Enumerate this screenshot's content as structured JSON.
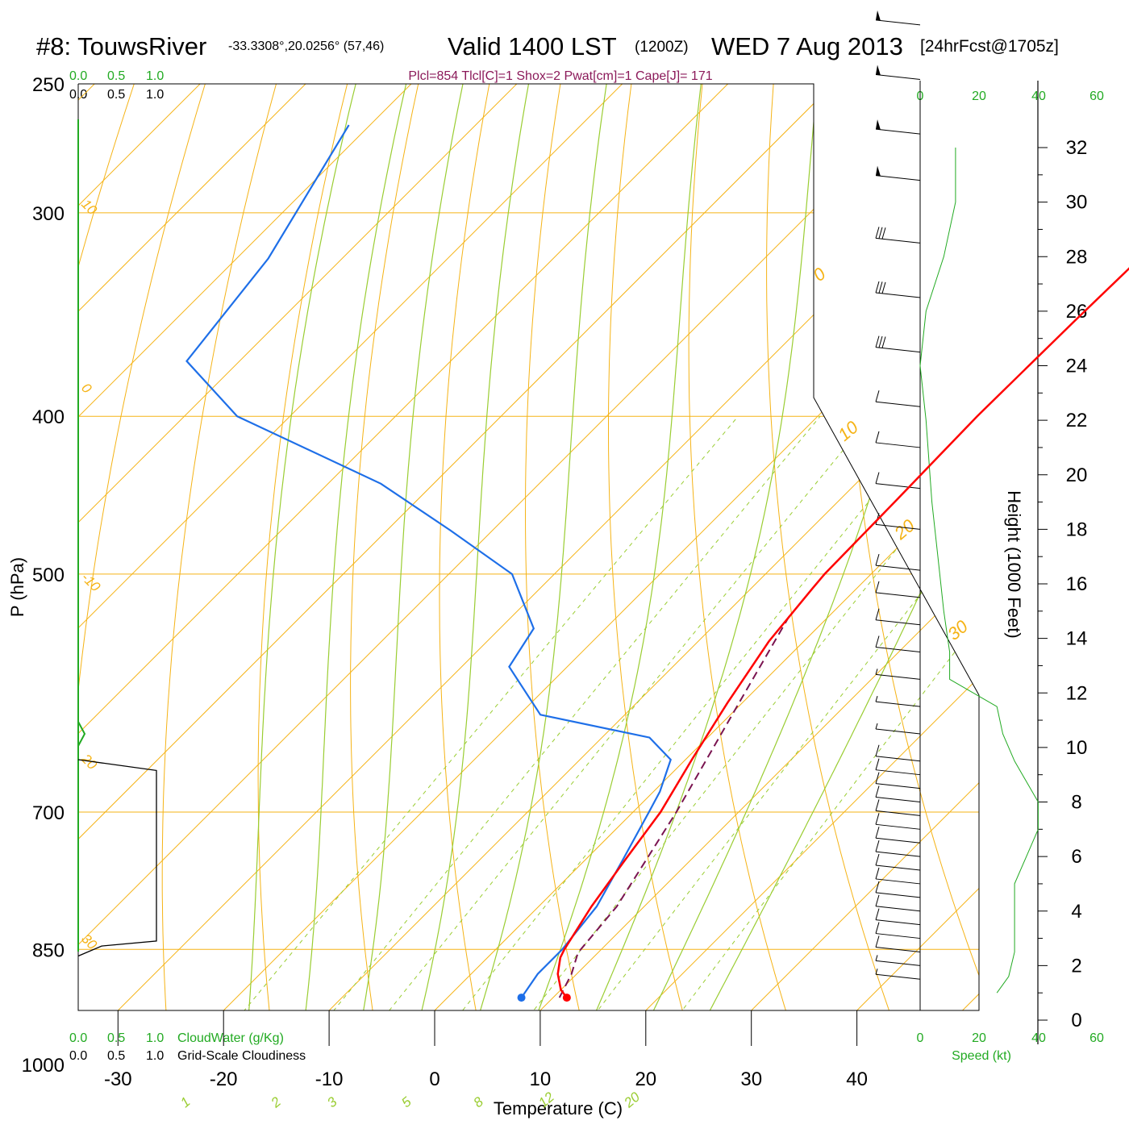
{
  "header": {
    "station": "#8: TouwsRiver",
    "coords": "-33.3308°,20.0256° (57,46)",
    "valid": "Valid 1400 LST",
    "zulu": "(1200Z)",
    "date": "WED 7 Aug 2013",
    "fcst": "[24hrFcst@1705z]",
    "indices": "Plcl=854 Tlcl[C]=1 Shox=2 Pwat[cm]=1 Cape[J]= 171"
  },
  "colors": {
    "isotherm": "#f5b316",
    "dry_adiabat": "#f5b316",
    "moist_adiabat": "#9acd32",
    "mixing_ratio": "#9acd32",
    "temperature": "#ff0000",
    "dewpoint": "#1e6fe8",
    "parcel": "#7a1450",
    "cloud_scale": "#22aa22",
    "barbs": "#000000"
  },
  "left_scales": {
    "cloudwater_ticks": [
      "0.0",
      "0.5",
      "1.0"
    ],
    "cloudiness_ticks": [
      "0.0",
      "0.5",
      "1.0"
    ],
    "cloudwater_label": "CloudWater (g/Kg)",
    "cloudiness_label": "Grid-Scale Cloudiness"
  },
  "speed_axis": {
    "ticks": [
      "0",
      "20",
      "40",
      "60"
    ],
    "label": "Speed (kt)"
  },
  "chart_data": {
    "type": "skew-t",
    "xlabel": "Temperature (C)",
    "ylabel": "P (hPa)",
    "y2label": "Height (1000 Feet)",
    "x_ticks": [
      -30,
      -20,
      -10,
      0,
      10,
      20,
      30,
      40
    ],
    "xlim": [
      -34,
      46
    ],
    "p_ticks": [
      250,
      300,
      400,
      500,
      700,
      850,
      1000
    ],
    "plim": [
      1000,
      250
    ],
    "height_ticks_kft": [
      0,
      2,
      4,
      6,
      8,
      10,
      12,
      14,
      16,
      18,
      20,
      22,
      24,
      26,
      28,
      30,
      32
    ],
    "isotherm_labels": [
      "10",
      "0",
      "-10",
      "20",
      "30",
      "0",
      "10",
      "20",
      "30"
    ],
    "mixing_ratio_labels": [
      "1",
      "2",
      "3",
      "5",
      "8",
      "12",
      "20"
    ],
    "temperature": [
      [
        910,
        11.3
      ],
      [
        900,
        10
      ],
      [
        880,
        8.2
      ],
      [
        860,
        6.9
      ],
      [
        850,
        6.5
      ],
      [
        800,
        5
      ],
      [
        750,
        3.8
      ],
      [
        700,
        2.6
      ],
      [
        650,
        0.6
      ],
      [
        600,
        -1.4
      ],
      [
        550,
        -3.3
      ],
      [
        510,
        -4.2
      ],
      [
        500,
        -4.4
      ],
      [
        450,
        -4.6
      ],
      [
        400,
        -4.9
      ],
      [
        350,
        -4.7
      ],
      [
        300,
        -4.3
      ],
      [
        280,
        -3.7
      ],
      [
        265,
        -2.0
      ]
    ],
    "dewpoint": [
      [
        910,
        7.0
      ],
      [
        880,
        6.3
      ],
      [
        860,
        6.3
      ],
      [
        850,
        6.3
      ],
      [
        800,
        5.5
      ],
      [
        750,
        3.6
      ],
      [
        700,
        1.5
      ],
      [
        680,
        0.6
      ],
      [
        650,
        -1.4
      ],
      [
        630,
        -5.5
      ],
      [
        610,
        -18
      ],
      [
        570,
        -25.5
      ],
      [
        540,
        -26.8
      ],
      [
        500,
        -34
      ],
      [
        470,
        -44
      ],
      [
        440,
        -55
      ],
      [
        400,
        -75
      ],
      [
        370,
        -85
      ],
      [
        320,
        -87
      ],
      [
        265,
        -92
      ]
    ],
    "parcel": [
      [
        910,
        10.6
      ],
      [
        880,
        9.5
      ],
      [
        854,
        8.1
      ],
      [
        800,
        7.4
      ],
      [
        700,
        4.1
      ],
      [
        600,
        -0.3
      ],
      [
        530,
        -3.8
      ]
    ],
    "surface_points": {
      "temperature": [
        910,
        11.3
      ],
      "dewpoint": [
        910,
        7.0
      ]
    },
    "cloudiness": [
      [
        652,
        0
      ],
      [
        660,
        0.3
      ],
      [
        835,
        0.3
      ],
      [
        842,
        0.1
      ],
      [
        855,
        0
      ]
    ],
    "wind_speed_kt": [
      [
        1,
        13
      ],
      [
        1.6,
        15
      ],
      [
        2.5,
        16
      ],
      [
        4,
        16
      ],
      [
        5,
        16
      ],
      [
        7,
        20
      ],
      [
        8,
        20
      ],
      [
        9.5,
        16
      ],
      [
        10.5,
        14
      ],
      [
        11.5,
        13
      ],
      [
        12.5,
        5
      ],
      [
        13.5,
        5
      ],
      [
        15,
        4
      ],
      [
        17,
        3
      ],
      [
        19,
        2
      ],
      [
        22,
        1
      ],
      [
        24,
        0
      ],
      [
        26,
        1
      ],
      [
        28,
        4
      ],
      [
        30,
        6
      ],
      [
        32,
        6
      ]
    ],
    "barbs": [
      {
        "kft": 1.5,
        "spd": 8
      },
      {
        "kft": 2.0,
        "spd": 8
      },
      {
        "kft": 2.5,
        "spd": 10
      },
      {
        "kft": 3.0,
        "spd": 10
      },
      {
        "kft": 3.5,
        "spd": 10
      },
      {
        "kft": 4.0,
        "spd": 10
      },
      {
        "kft": 4.5,
        "spd": 10
      },
      {
        "kft": 5.0,
        "spd": 10
      },
      {
        "kft": 5.5,
        "spd": 10
      },
      {
        "kft": 6.0,
        "spd": 10
      },
      {
        "kft": 6.5,
        "spd": 10
      },
      {
        "kft": 7.0,
        "spd": 10
      },
      {
        "kft": 7.5,
        "spd": 10
      },
      {
        "kft": 8.0,
        "spd": 10
      },
      {
        "kft": 8.5,
        "spd": 10
      },
      {
        "kft": 9.0,
        "spd": 10
      },
      {
        "kft": 9.5,
        "spd": 10
      },
      {
        "kft": 10.5,
        "spd": 5
      },
      {
        "kft": 11.5,
        "spd": 5
      },
      {
        "kft": 12.5,
        "spd": 5
      },
      {
        "kft": 13.5,
        "spd": 10
      },
      {
        "kft": 14.5,
        "spd": 10
      },
      {
        "kft": 15.5,
        "spd": 10
      },
      {
        "kft": 16.5,
        "spd": 10
      },
      {
        "kft": 18,
        "spd": 10
      },
      {
        "kft": 19.5,
        "spd": 10
      },
      {
        "kft": 21,
        "spd": 10
      },
      {
        "kft": 22.5,
        "spd": 10
      },
      {
        "kft": 24.5,
        "spd": 30
      },
      {
        "kft": 26.5,
        "spd": 30
      },
      {
        "kft": 28.5,
        "spd": 30
      },
      {
        "kft": 30.8,
        "spd": 50
      },
      {
        "kft": 32.5,
        "spd": 50
      },
      {
        "kft": 34.5,
        "spd": 50
      },
      {
        "kft": 36.5,
        "spd": 50
      }
    ]
  }
}
